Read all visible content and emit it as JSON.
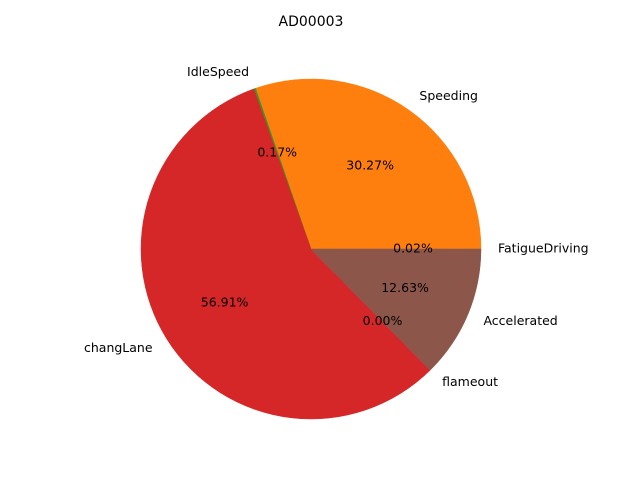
{
  "chart_data": {
    "type": "pie",
    "title": "AD00003",
    "slices": [
      {
        "label": "FatigueDriving",
        "value": 0.02,
        "pct_label": "0.02%",
        "color": "#1f77b4"
      },
      {
        "label": "Speeding",
        "value": 30.27,
        "pct_label": "30.27%",
        "color": "#ff7f0e"
      },
      {
        "label": "IdleSpeed",
        "value": 0.17,
        "pct_label": "0.17%",
        "color": "#2ca02c"
      },
      {
        "label": "changLane",
        "value": 56.91,
        "pct_label": "56.91%",
        "color": "#d62728"
      },
      {
        "label": "flameout",
        "value": 0.0,
        "pct_label": "0.00%",
        "color": "#9467bd"
      },
      {
        "label": "Accelerated",
        "value": 12.63,
        "pct_label": "12.63%",
        "color": "#8c564b"
      }
    ],
    "start_angle_deg": 0,
    "direction": "counterclockwise",
    "legend": "none"
  }
}
